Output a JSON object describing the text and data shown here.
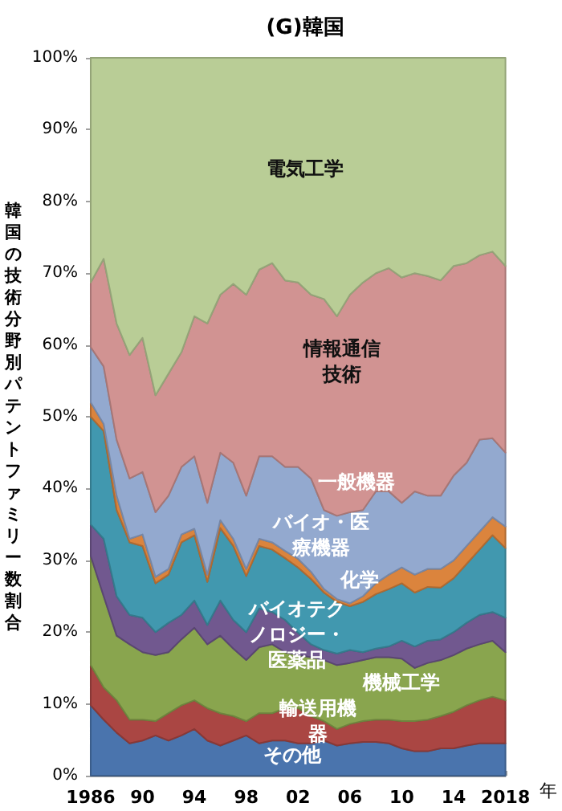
{
  "chart_data": {
    "type": "area",
    "stacked": true,
    "title": "(G)韓国",
    "xlabel": "年",
    "ylabel": "韓国の技術分野別パテントファミリー数割合",
    "grid": false,
    "legend": false,
    "x": [
      1986,
      1987,
      1988,
      1989,
      1990,
      1991,
      1992,
      1993,
      1994,
      1995,
      1996,
      1997,
      1998,
      1999,
      2000,
      2001,
      2002,
      2003,
      2004,
      2005,
      2006,
      2007,
      2008,
      2009,
      2010,
      2011,
      2012,
      2013,
      2014,
      2015,
      2016,
      2017,
      2018
    ],
    "xlim": [
      1986,
      2018
    ],
    "xticks": [
      {
        "value": 1986,
        "label": "1986"
      },
      {
        "value": 1987,
        "label": null
      },
      {
        "value": 1988,
        "label": null
      },
      {
        "value": 1989,
        "label": null
      },
      {
        "value": 1990,
        "label": "90"
      },
      {
        "value": 1991,
        "label": null
      },
      {
        "value": 1992,
        "label": null
      },
      {
        "value": 1993,
        "label": null
      },
      {
        "value": 1994,
        "label": "94"
      },
      {
        "value": 1995,
        "label": null
      },
      {
        "value": 1996,
        "label": null
      },
      {
        "value": 1997,
        "label": null
      },
      {
        "value": 1998,
        "label": "98"
      },
      {
        "value": 1999,
        "label": null
      },
      {
        "value": 2000,
        "label": null
      },
      {
        "value": 2001,
        "label": null
      },
      {
        "value": 2002,
        "label": "02"
      },
      {
        "value": 2003,
        "label": null
      },
      {
        "value": 2004,
        "label": null
      },
      {
        "value": 2005,
        "label": null
      },
      {
        "value": 2006,
        "label": "06"
      },
      {
        "value": 2007,
        "label": null
      },
      {
        "value": 2008,
        "label": null
      },
      {
        "value": 2009,
        "label": null
      },
      {
        "value": 2010,
        "label": "10"
      },
      {
        "value": 2011,
        "label": null
      },
      {
        "value": 2012,
        "label": null
      },
      {
        "value": 2013,
        "label": null
      },
      {
        "value": 2014,
        "label": "14"
      },
      {
        "value": 2015,
        "label": null
      },
      {
        "value": 2016,
        "label": null
      },
      {
        "value": 2017,
        "label": null
      },
      {
        "value": 2018,
        "label": "2018"
      }
    ],
    "ylim": [
      0,
      100
    ],
    "yticks": [
      {
        "value": 0,
        "label": "0%"
      },
      {
        "value": 10,
        "label": "10%"
      },
      {
        "value": 20,
        "label": "20%"
      },
      {
        "value": 30,
        "label": "30%"
      },
      {
        "value": 40,
        "label": "40%"
      },
      {
        "value": 50,
        "label": "50%"
      },
      {
        "value": 60,
        "label": "60%"
      },
      {
        "value": 70,
        "label": "70%"
      },
      {
        "value": 80,
        "label": "80%"
      },
      {
        "value": 90,
        "label": "90%"
      },
      {
        "value": 100,
        "label": "100%"
      }
    ],
    "series": [
      {
        "name": "その他",
        "color": "#4a74ad",
        "values": [
          9.8,
          7.8,
          6,
          4.5,
          4.9,
          5.6,
          4.9,
          5.6,
          6.5,
          4.9,
          4.2,
          4.9,
          5.6,
          4.5,
          4.9,
          4.9,
          4.5,
          4.5,
          4.9,
          4.2,
          4.5,
          4.7,
          4.7,
          4.5,
          3.8,
          3.4,
          3.4,
          3.8,
          3.8,
          4.2,
          4.5,
          4.5,
          4.5
        ]
      },
      {
        "name": "輸送用機器",
        "color": "#aa4643",
        "values": [
          5.6,
          4.5,
          4.5,
          3.3,
          2.9,
          2,
          3.8,
          4.2,
          4,
          4.5,
          4.5,
          3.4,
          2,
          4.2,
          3.8,
          4.5,
          4.9,
          3.8,
          2.7,
          2.3,
          2.7,
          2.9,
          3.1,
          3.3,
          3.8,
          4.2,
          4.4,
          4.5,
          5.1,
          5.6,
          6,
          6.5,
          6
        ]
      },
      {
        "name": "機械工学",
        "color": "#89a54e",
        "values": [
          15.2,
          12.7,
          9,
          10.5,
          9.4,
          9.2,
          8.5,
          9.2,
          10.1,
          8.9,
          10.8,
          9.4,
          8.5,
          9.2,
          9.6,
          7.8,
          7.4,
          8.2,
          8.5,
          8.9,
          8.5,
          8.5,
          8.7,
          8.7,
          8.7,
          7.4,
          7.9,
          7.8,
          7.9,
          7.9,
          7.8,
          7.8,
          6.7
        ]
      },
      {
        "name": "バイオテクノロジー・医薬品",
        "color": "#71588f",
        "values": [
          4.4,
          8,
          5.5,
          4.1,
          4.8,
          3.2,
          4.1,
          3.4,
          3.8,
          2.7,
          4.9,
          4,
          3.9,
          5.4,
          4.5,
          4.5,
          3.1,
          1.8,
          1.4,
          1.6,
          1.8,
          1.1,
          1.2,
          1.5,
          2.5,
          3,
          3.1,
          2.9,
          3.2,
          3.6,
          4.1,
          4,
          4.8
        ]
      },
      {
        "name": "化学",
        "color": "#4198af",
        "values": [
          15,
          15,
          12,
          10.1,
          10,
          6.8,
          6.7,
          10.1,
          9.1,
          6,
          10.1,
          10.3,
          7.8,
          8.7,
          8.7,
          8.6,
          9.1,
          9.1,
          8,
          7.2,
          6.1,
          7,
          7.6,
          8,
          8,
          7.5,
          7.5,
          7.2,
          7.5,
          8.2,
          9.1,
          10.7,
          9.7
        ]
      },
      {
        "name": "バイオ・医療機器",
        "color": "#db843d",
        "values": [
          2,
          1,
          2,
          0.5,
          1.6,
          0.9,
          0.8,
          1.1,
          0.9,
          1,
          1.1,
          1,
          1,
          1,
          1,
          1,
          1.2,
          1,
          0.5,
          0.4,
          0.4,
          0.8,
          1.5,
          2,
          2.2,
          2.5,
          2.5,
          2.6,
          2.5,
          2.5,
          2.5,
          2.5,
          3
        ]
      },
      {
        "name": "一般機器",
        "color": "#93a9cf",
        "values": [
          7.7,
          8,
          7.8,
          8.4,
          8.7,
          9,
          10.2,
          9.4,
          10.1,
          10,
          9.4,
          10.6,
          10.2,
          11.5,
          12,
          11.7,
          12.8,
          13,
          11,
          11.6,
          12.7,
          12,
          12.8,
          11.6,
          9,
          11.6,
          10.2,
          10.2,
          11.8,
          11.6,
          12.8,
          11,
          10.3
        ]
      },
      {
        "name": "情報通信技術",
        "color": "#d19392",
        "values": [
          9,
          15,
          16.2,
          17.2,
          18.7,
          16.3,
          17,
          16,
          19.5,
          25,
          22,
          24.9,
          28,
          26,
          26.9,
          26,
          25.7,
          25.6,
          29.4,
          27.8,
          30.3,
          31.7,
          30.4,
          31.1,
          31.4,
          30.4,
          30.6,
          30,
          29.2,
          27.8,
          25.7,
          26,
          26
        ]
      },
      {
        "name": "電気工学",
        "color": "#b9cd96",
        "values": [
          31.3,
          28,
          37,
          41.4,
          39,
          47,
          44,
          41,
          36,
          37,
          33,
          31.5,
          33,
          29.5,
          28.6,
          31,
          31.3,
          33,
          33.6,
          36,
          33,
          31.3,
          30,
          29.3,
          30.6,
          30,
          30.4,
          31,
          29,
          28.6,
          27.5,
          27,
          29
        ]
      }
    ]
  }
}
